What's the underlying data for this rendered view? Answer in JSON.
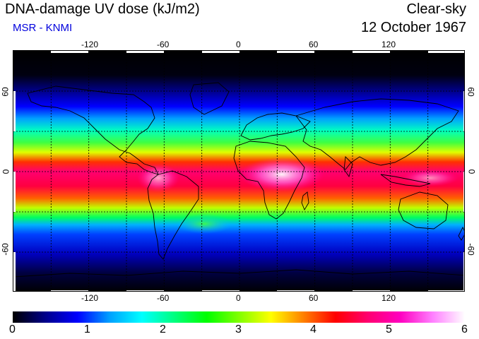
{
  "header": {
    "title": "DNA-damage UV dose (kJ/m2)",
    "subtitle": "MSR - KNMI",
    "mode": "Clear-sky",
    "date": "12 October 1967"
  },
  "map": {
    "lon_ticks": [
      "-120",
      "-60",
      "0",
      "60",
      "120"
    ],
    "lat_ticks_left": [
      "60",
      "0",
      "-60"
    ],
    "lat_ticks_right": [
      "60",
      "0",
      "-60"
    ],
    "lon_range": [
      -180,
      180
    ],
    "lat_range": [
      -90,
      90
    ],
    "grid": true,
    "gridlines_lon": [
      -150,
      -120,
      -90,
      -60,
      -30,
      0,
      30,
      60,
      90,
      120,
      150
    ],
    "gridlines_lat": [
      -60,
      -30,
      0,
      30,
      60
    ]
  },
  "colorbar": {
    "labels": [
      "0",
      "1",
      "2",
      "3",
      "4",
      "5",
      "6"
    ],
    "range": [
      0,
      6
    ],
    "colors": [
      "#000000",
      "#000088",
      "#0000ff",
      "#00a0ff",
      "#00ffff",
      "#00ff80",
      "#00ff00",
      "#80ff00",
      "#ffff00",
      "#ff8000",
      "#ff0000",
      "#ff0070",
      "#ff00c0",
      "#ff80ff",
      "#ffffff"
    ]
  }
}
